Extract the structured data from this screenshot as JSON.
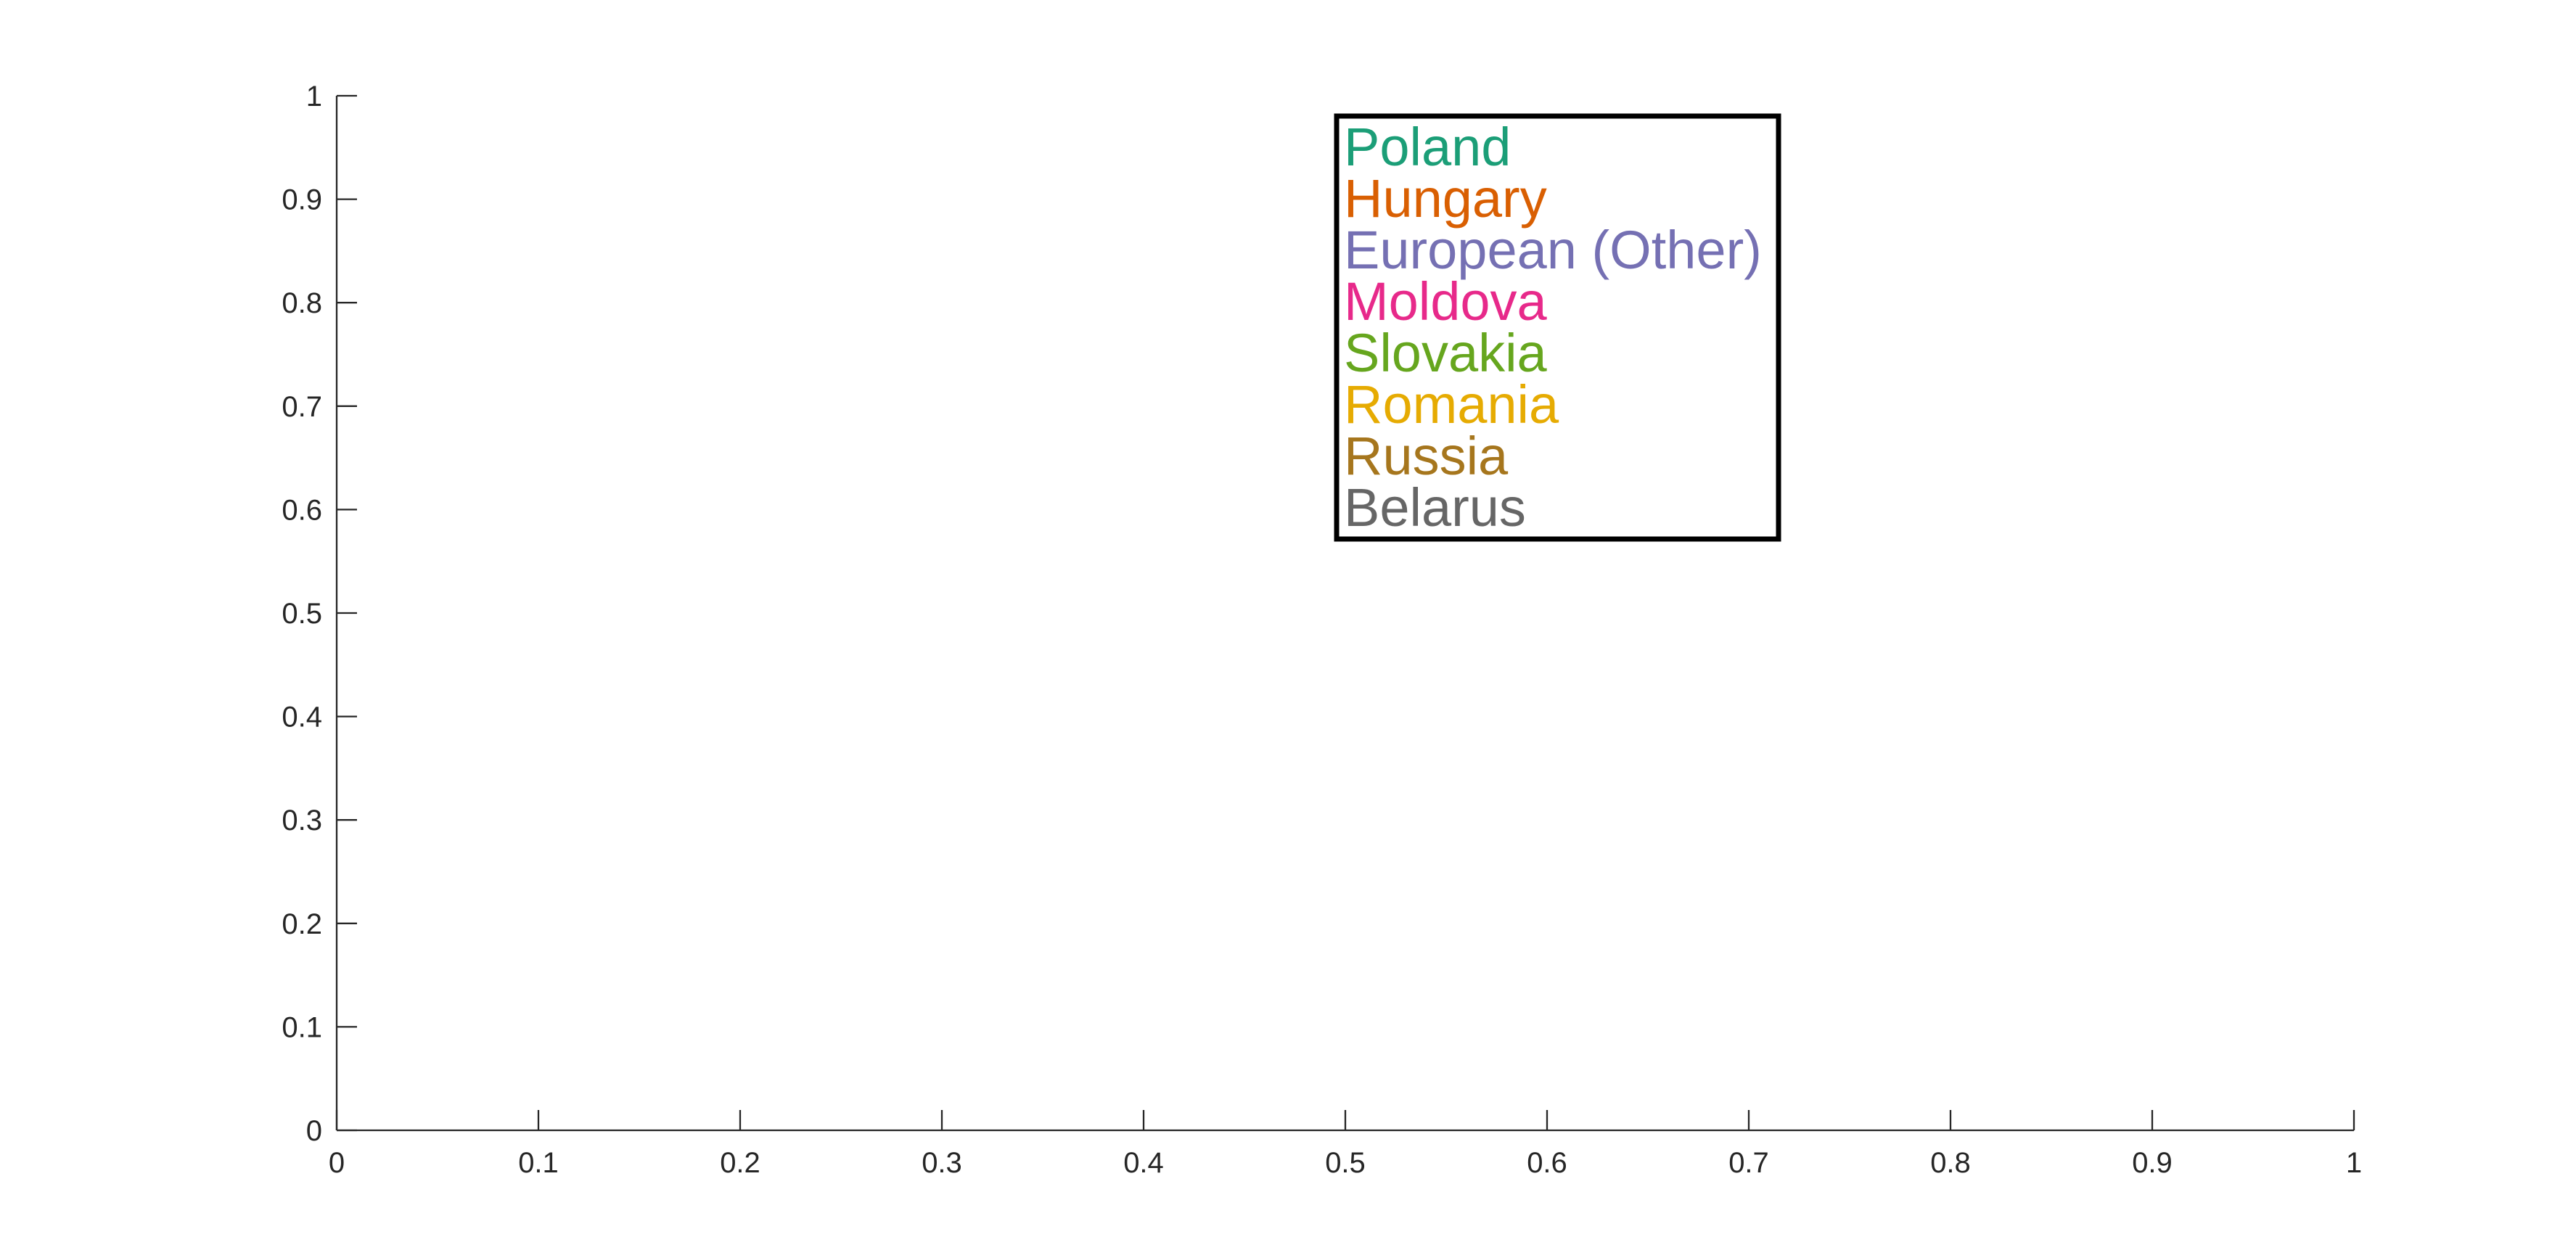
{
  "chart_data": {
    "type": "line",
    "title": "",
    "xlabel": "",
    "ylabel": "",
    "xlim": [
      0,
      1
    ],
    "ylim": [
      0,
      1
    ],
    "grid": false,
    "x_ticks": [
      "0",
      "0.1",
      "0.2",
      "0.3",
      "0.4",
      "0.5",
      "0.6",
      "0.7",
      "0.8",
      "0.9",
      "1"
    ],
    "y_ticks": [
      "0",
      "0.1",
      "0.2",
      "0.3",
      "0.4",
      "0.5",
      "0.6",
      "0.7",
      "0.8",
      "0.9",
      "1"
    ],
    "legend_placement": "top-center",
    "series": [
      {
        "name": "Poland",
        "color": "#1b9e77",
        "values": []
      },
      {
        "name": "Hungary",
        "color": "#d95f02",
        "values": []
      },
      {
        "name": "European (Other)",
        "color": "#7570b3",
        "values": []
      },
      {
        "name": "Moldova",
        "color": "#e7298a",
        "values": []
      },
      {
        "name": "Slovakia",
        "color": "#66a61e",
        "values": []
      },
      {
        "name": "Romania",
        "color": "#e6ab02",
        "values": []
      },
      {
        "name": "Russia",
        "color": "#a6761d",
        "values": []
      },
      {
        "name": "Belarus",
        "color": "#666666",
        "values": []
      }
    ]
  }
}
